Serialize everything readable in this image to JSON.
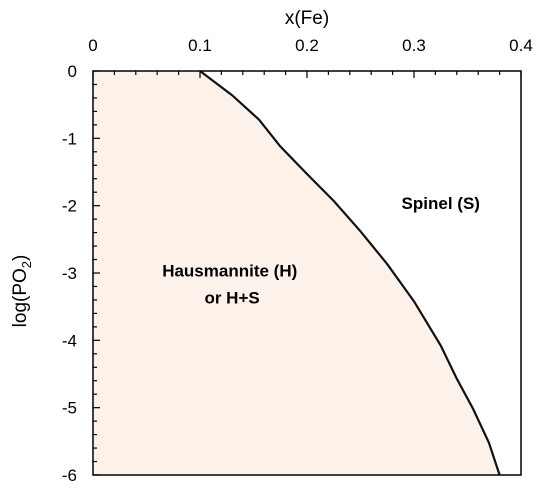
{
  "chart_data": {
    "type": "area",
    "xlabel": "x(Fe)",
    "ylabel_main": "log(PO",
    "ylabel_sub": "2",
    "ylabel_close": ")",
    "xlim": [
      0,
      0.4
    ],
    "ylim": [
      -6,
      0
    ],
    "x_ticks": [
      0,
      0.1,
      0.2,
      0.3,
      0.4
    ],
    "x_tick_labels": [
      "0",
      "0.1",
      "0.2",
      "0.3",
      "0.4"
    ],
    "y_ticks": [
      0,
      -1,
      -2,
      -3,
      -4,
      -5,
      -6
    ],
    "y_tick_labels": [
      "0",
      "-1",
      "-2",
      "-3",
      "-4",
      "-5",
      "-6"
    ],
    "grid": false,
    "boundary": {
      "x": [
        0.1,
        0.13,
        0.155,
        0.175,
        0.2,
        0.225,
        0.25,
        0.275,
        0.3,
        0.325,
        0.34,
        0.355,
        0.37,
        0.38
      ],
      "y": [
        0.0,
        -0.36,
        -0.72,
        -1.12,
        -1.53,
        -1.93,
        -2.38,
        -2.87,
        -3.42,
        -4.08,
        -4.57,
        -5.01,
        -5.52,
        -6.0
      ]
    },
    "fill_color": "#fdf2ea",
    "line_color": "#111111",
    "regions": [
      {
        "line1": "Spinel (S)",
        "x": 0.325,
        "y": -2.05
      },
      {
        "line1": "Hausmannite  (H)",
        "line2": "or H+S",
        "x": 0.13,
        "y": -3.05
      }
    ]
  }
}
